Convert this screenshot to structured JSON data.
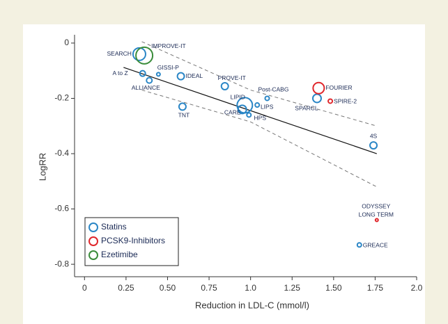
{
  "chart_data": {
    "type": "scatter",
    "xlabel": "Reduction in LDL-C (mmol/l)",
    "ylabel": "LogRR",
    "xlim": [
      -0.06,
      2.0
    ],
    "ylim": [
      -0.845,
      0.03
    ],
    "xticks": [
      0,
      0.25,
      {
        "value": 0.5,
        "label": "0.50"
      },
      0.75,
      {
        "value": 1.0,
        "label": "1.0"
      },
      1.25,
      {
        "value": 1.5,
        "label": "1.50"
      },
      1.75,
      {
        "value": 2.0,
        "label": "2.0"
      }
    ],
    "yticks": [
      0,
      -0.2,
      -0.4,
      -0.6,
      -0.8
    ],
    "legend": "lower left",
    "series": [
      {
        "name": "Statins",
        "color": "#2a86c6",
        "labels": [
          "SEARCH",
          "A to Z",
          "ALLIANCE",
          "GISSI-P",
          "IDEAL",
          "TNT",
          "PROVE-IT",
          "LIPID",
          "CARE",
          "HPS",
          "LIPS",
          "Post-CABG",
          "SPARCL",
          "4S",
          "GREACE"
        ],
        "x": [
          0.33,
          0.35,
          0.39,
          0.445,
          0.58,
          0.59,
          0.845,
          0.965,
          0.95,
          0.99,
          1.04,
          1.1,
          1.4,
          1.74,
          1.655
        ],
        "values": [
          -0.04,
          -0.11,
          -0.135,
          -0.113,
          -0.12,
          -0.23,
          -0.156,
          -0.225,
          -0.24,
          -0.26,
          -0.224,
          -0.2,
          -0.2,
          -0.37,
          -0.73
        ],
        "sizes": [
          9,
          4,
          4,
          2.5,
          5,
          5,
          5,
          11,
          6,
          3,
          3,
          3,
          6,
          5,
          3
        ]
      },
      {
        "name": "PCSK9-Inhibitors",
        "color": "#e0262b",
        "labels": [
          "FOURIER",
          "SPIRE-2",
          [
            "ODYSSEY",
            "LONG TERM"
          ]
        ],
        "x": [
          1.41,
          1.48,
          1.76
        ],
        "values": [
          -0.163,
          -0.21,
          -0.64
        ],
        "sizes": [
          8,
          3,
          2
        ]
      },
      {
        "name": "Ezetimibe",
        "color": "#3a8c3a",
        "labels": [
          "IMPROVE-IT"
        ],
        "x": [
          0.36
        ],
        "values": [
          -0.045
        ],
        "sizes": [
          12
        ]
      }
    ],
    "fit": {
      "x": [
        0.235,
        1.76
      ],
      "values": [
        -0.088,
        -0.4
      ]
    },
    "ci_upper": {
      "x": [
        0.345,
        1.0,
        1.76
      ],
      "values": [
        0.005,
        -0.17,
        -0.3
      ]
    },
    "ci_lower": {
      "x": [
        0.345,
        1.0,
        1.76
      ],
      "values": [
        -0.17,
        -0.285,
        -0.52
      ]
    }
  }
}
